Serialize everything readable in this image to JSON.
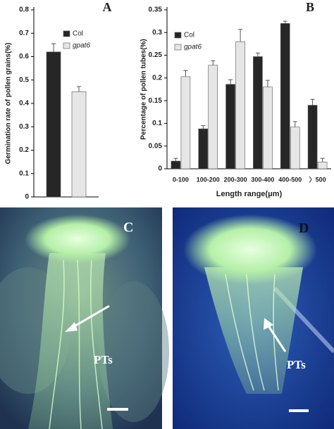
{
  "chart_data": [
    {
      "type": "bar",
      "panel_label": "A",
      "ylabel": "Germination rate of pollen grains(%)",
      "categories": [
        null
      ],
      "series": [
        {
          "name": "Col",
          "color": "#262626",
          "values": [
            0.62
          ],
          "errors": [
            0.035
          ]
        },
        {
          "name": "gpat6",
          "color": "#e6e6e6",
          "values": [
            0.45
          ],
          "errors": [
            0.022
          ]
        }
      ],
      "ylim": [
        0,
        0.8
      ],
      "yticks": [
        0,
        0.1,
        0.2,
        0.3,
        0.4,
        0.5,
        0.6,
        0.7,
        0.8
      ]
    },
    {
      "type": "bar",
      "panel_label": "B",
      "ylabel": "Percentage of pollen tubes(%)",
      "xlabel": "Length range(μm)",
      "categories": [
        "0-100",
        "100-200",
        "200-300",
        "300-400",
        "400-500",
        "〉500"
      ],
      "series": [
        {
          "name": "Col",
          "color": "#262626",
          "values": [
            0.017,
            0.088,
            0.186,
            0.247,
            0.32,
            0.14
          ],
          "errors": [
            0.006,
            0.007,
            0.01,
            0.008,
            0.005,
            0.013
          ]
        },
        {
          "name": "gpat6",
          "color": "#e6e6e6",
          "values": [
            0.203,
            0.228,
            0.28,
            0.18,
            0.092,
            0.015
          ],
          "errors": [
            0.013,
            0.01,
            0.027,
            0.015,
            0.012,
            0.008
          ]
        }
      ],
      "ylim": [
        0,
        0.35
      ],
      "yticks": [
        0,
        0.05,
        0.1,
        0.15,
        0.2,
        0.25,
        0.3,
        0.35
      ]
    }
  ],
  "panels": [
    {
      "label": "C",
      "annotation": "PTs"
    },
    {
      "label": "D",
      "annotation": "PTs"
    }
  ]
}
